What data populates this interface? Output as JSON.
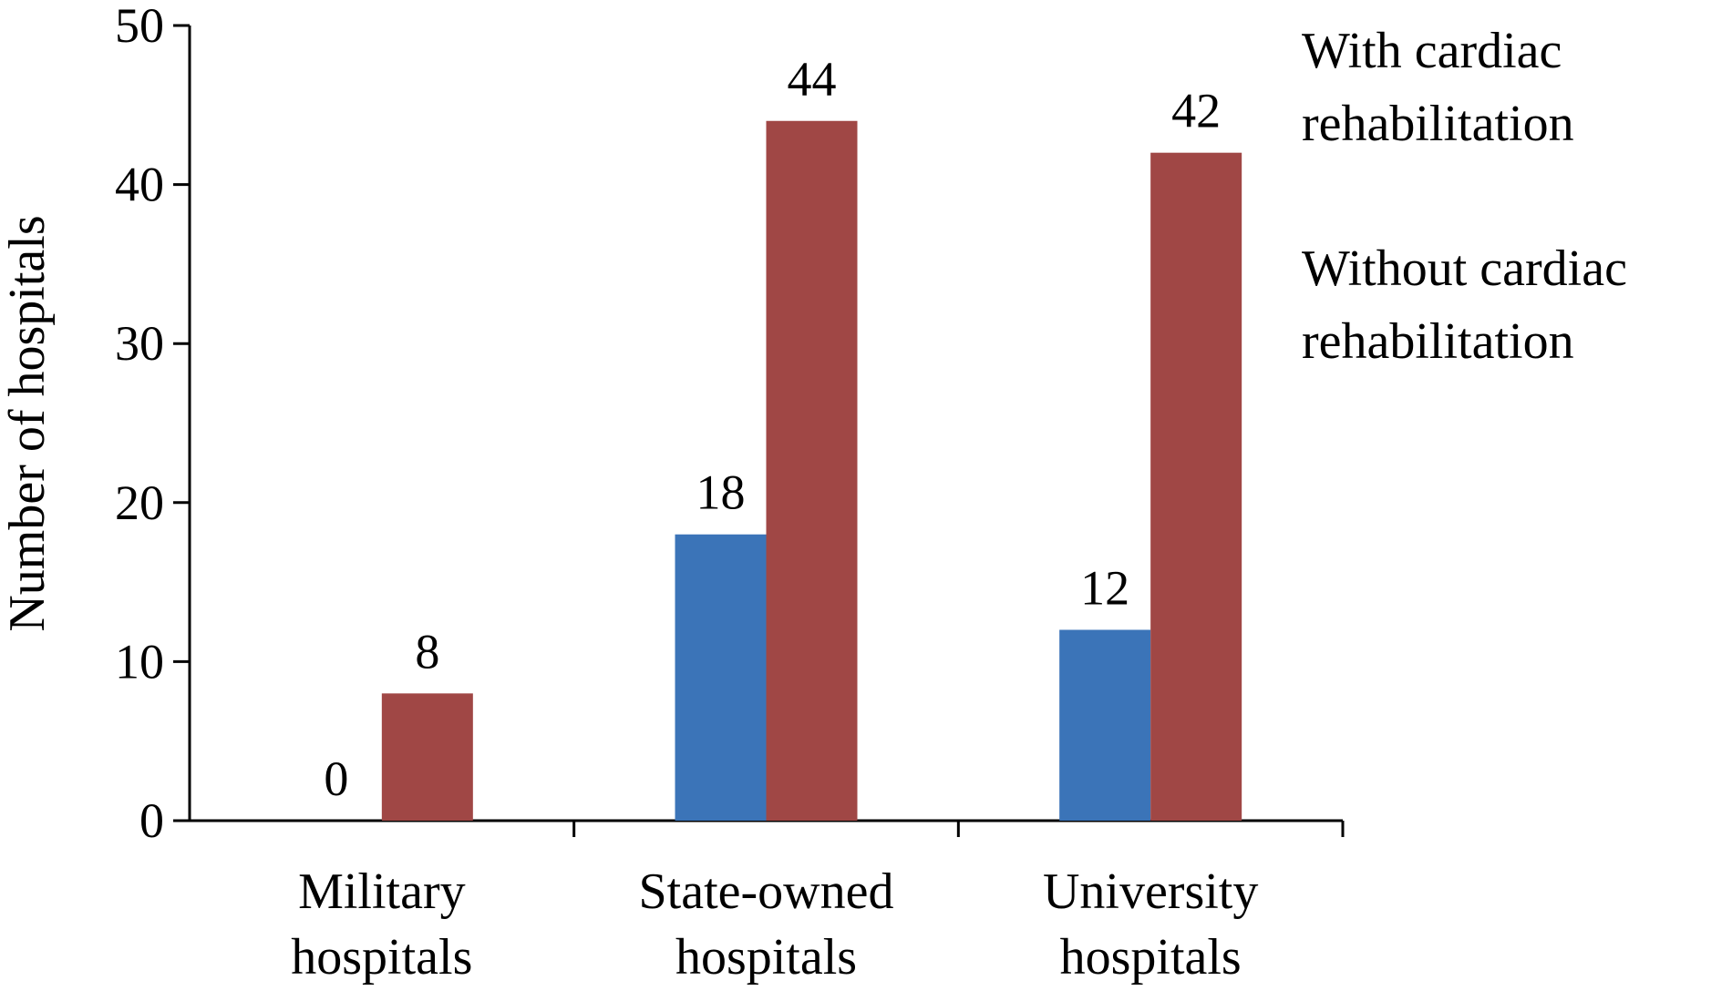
{
  "chart_data": {
    "type": "bar",
    "title": "",
    "ylabel": "Number of hospitals",
    "xlabel": "",
    "ylim": [
      0,
      50
    ],
    "yticks": [
      0,
      10,
      20,
      30,
      40,
      50
    ],
    "categories": [
      [
        "Military",
        "hospitals"
      ],
      [
        "State-owned",
        "hospitals"
      ],
      [
        "University",
        "hospitals"
      ]
    ],
    "series": [
      {
        "name": [
          "With cardiac",
          "rehabilitation"
        ],
        "color": "#3B74B8",
        "values": [
          0,
          18,
          12
        ]
      },
      {
        "name": [
          "Without cardiac",
          "rehabilitation"
        ],
        "color": "#A04745",
        "values": [
          8,
          44,
          42
        ]
      }
    ],
    "data_labels": true,
    "grid": false,
    "legend_position": "right"
  }
}
